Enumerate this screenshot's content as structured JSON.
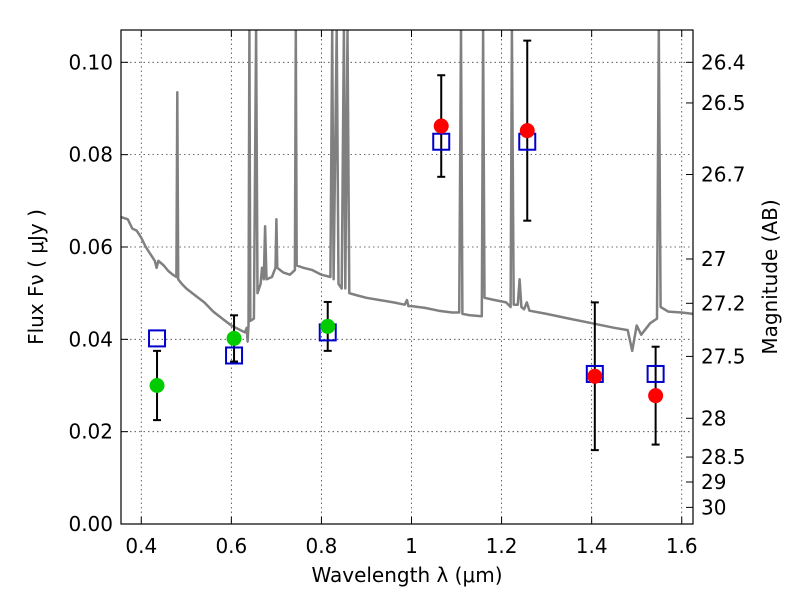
{
  "chart_data": {
    "type": "scatter",
    "xlabel": "Wavelength  λ (μm)",
    "ylabel": "Flux  Fν  ( μJy )",
    "ylabel_right": "Magnitude (AB)",
    "xlim": [
      0.355,
      1.625
    ],
    "ylim": [
      0.0,
      0.107
    ],
    "grid": true,
    "x_ticks": [
      0.4,
      0.6,
      0.8,
      1.0,
      1.2,
      1.4,
      1.6
    ],
    "x_tick_labels": [
      "0.4",
      "0.6",
      "0.8",
      "1",
      "1.2",
      "1.4",
      "1.6"
    ],
    "y_ticks": [
      0.0,
      0.02,
      0.04,
      0.06,
      0.08,
      0.1
    ],
    "y_tick_labels": [
      "0.00",
      "0.02",
      "0.04",
      "0.06",
      "0.08",
      "0.10"
    ],
    "right_ticks": [
      {
        "label": "26.4",
        "flux": 0.1
      },
      {
        "label": "26.5",
        "flux": 0.0912
      },
      {
        "label": "26.7",
        "flux": 0.0757
      },
      {
        "label": "27",
        "flux": 0.0574
      },
      {
        "label": "27.2",
        "flux": 0.0478
      },
      {
        "label": "27.5",
        "flux": 0.0363
      },
      {
        "label": "28",
        "flux": 0.0229
      },
      {
        "label": "28.5",
        "flux": 0.0145
      },
      {
        "label": "29",
        "flux": 0.0091
      },
      {
        "label": "30",
        "flux": 0.0036
      }
    ],
    "series": [
      {
        "marker": "open-square",
        "color": "#0000cc",
        "points": [
          {
            "x": 0.435,
            "y": 0.0402
          },
          {
            "x": 0.606,
            "y": 0.0365
          },
          {
            "x": 0.814,
            "y": 0.0415
          },
          {
            "x": 1.066,
            "y": 0.0828
          },
          {
            "x": 1.257,
            "y": 0.0828
          },
          {
            "x": 1.407,
            "y": 0.0325
          },
          {
            "x": 1.542,
            "y": 0.0325
          }
        ]
      },
      {
        "marker": "filled-circle",
        "color": "#00cc00",
        "points": [
          {
            "x": 0.435,
            "y": 0.03,
            "err": 0.0075
          },
          {
            "x": 0.606,
            "y": 0.0402,
            "err": 0.005
          },
          {
            "x": 0.814,
            "y": 0.0428,
            "err": 0.0053
          }
        ]
      },
      {
        "marker": "filled-circle",
        "color": "#ff0000",
        "points": [
          {
            "x": 1.066,
            "y": 0.0862,
            "err": 0.011
          },
          {
            "x": 1.257,
            "y": 0.0852,
            "err": 0.0195
          },
          {
            "x": 1.407,
            "y": 0.032,
            "err": 0.016
          },
          {
            "x": 1.542,
            "y": 0.0278,
            "err": 0.0106
          }
        ]
      },
      {
        "marker": "line",
        "color": "#808080",
        "points": [
          {
            "x": 0.355,
            "y": 0.0665
          },
          {
            "x": 0.37,
            "y": 0.066
          },
          {
            "x": 0.38,
            "y": 0.064
          },
          {
            "x": 0.39,
            "y": 0.0635
          },
          {
            "x": 0.4,
            "y": 0.062
          },
          {
            "x": 0.41,
            "y": 0.06
          },
          {
            "x": 0.42,
            "y": 0.0585
          },
          {
            "x": 0.43,
            "y": 0.057
          },
          {
            "x": 0.434,
            "y": 0.0555
          },
          {
            "x": 0.438,
            "y": 0.057
          },
          {
            "x": 0.45,
            "y": 0.056
          },
          {
            "x": 0.46,
            "y": 0.0548
          },
          {
            "x": 0.47,
            "y": 0.054
          },
          {
            "x": 0.478,
            "y": 0.0535
          },
          {
            "x": 0.48,
            "y": 0.0935
          },
          {
            "x": 0.482,
            "y": 0.053
          },
          {
            "x": 0.49,
            "y": 0.052
          },
          {
            "x": 0.5,
            "y": 0.051
          },
          {
            "x": 0.52,
            "y": 0.0495
          },
          {
            "x": 0.54,
            "y": 0.048
          },
          {
            "x": 0.56,
            "y": 0.046
          },
          {
            "x": 0.58,
            "y": 0.0445
          },
          {
            "x": 0.6,
            "y": 0.043
          },
          {
            "x": 0.62,
            "y": 0.042
          },
          {
            "x": 0.63,
            "y": 0.0415
          },
          {
            "x": 0.634,
            "y": 0.0425
          },
          {
            "x": 0.636,
            "y": 0.0395
          },
          {
            "x": 0.638,
            "y": 0.043
          },
          {
            "x": 0.64,
            "y": 0.107
          },
          {
            "x": 0.642,
            "y": 0.044
          },
          {
            "x": 0.65,
            "y": 0.0445
          },
          {
            "x": 0.655,
            "y": 0.107
          },
          {
            "x": 0.658,
            "y": 0.05
          },
          {
            "x": 0.665,
            "y": 0.052
          },
          {
            "x": 0.668,
            "y": 0.0555
          },
          {
            "x": 0.672,
            "y": 0.053
          },
          {
            "x": 0.675,
            "y": 0.0645
          },
          {
            "x": 0.678,
            "y": 0.053
          },
          {
            "x": 0.69,
            "y": 0.0535
          },
          {
            "x": 0.698,
            "y": 0.0555
          },
          {
            "x": 0.7,
            "y": 0.066
          },
          {
            "x": 0.702,
            "y": 0.0555
          },
          {
            "x": 0.715,
            "y": 0.0545
          },
          {
            "x": 0.73,
            "y": 0.054
          },
          {
            "x": 0.741,
            "y": 0.055
          },
          {
            "x": 0.743,
            "y": 0.107
          },
          {
            "x": 0.745,
            "y": 0.056
          },
          {
            "x": 0.76,
            "y": 0.0555
          },
          {
            "x": 0.78,
            "y": 0.055
          },
          {
            "x": 0.8,
            "y": 0.054
          },
          {
            "x": 0.82,
            "y": 0.0535
          },
          {
            "x": 0.824,
            "y": 0.107
          },
          {
            "x": 0.827,
            "y": 0.053
          },
          {
            "x": 0.834,
            "y": 0.107
          },
          {
            "x": 0.838,
            "y": 0.052
          },
          {
            "x": 0.845,
            "y": 0.051
          },
          {
            "x": 0.85,
            "y": 0.107
          },
          {
            "x": 0.853,
            "y": 0.051
          },
          {
            "x": 0.858,
            "y": 0.107
          },
          {
            "x": 0.862,
            "y": 0.05
          },
          {
            "x": 0.88,
            "y": 0.0495
          },
          {
            "x": 0.9,
            "y": 0.049
          },
          {
            "x": 0.93,
            "y": 0.0485
          },
          {
            "x": 0.96,
            "y": 0.048
          },
          {
            "x": 0.985,
            "y": 0.0475
          },
          {
            "x": 0.99,
            "y": 0.0485
          },
          {
            "x": 0.993,
            "y": 0.0472
          },
          {
            "x": 1.0,
            "y": 0.0472
          },
          {
            "x": 1.03,
            "y": 0.0468
          },
          {
            "x": 1.06,
            "y": 0.0462
          },
          {
            "x": 1.09,
            "y": 0.0458
          },
          {
            "x": 1.106,
            "y": 0.0458
          },
          {
            "x": 1.11,
            "y": 0.107
          },
          {
            "x": 1.113,
            "y": 0.0455
          },
          {
            "x": 1.13,
            "y": 0.0452
          },
          {
            "x": 1.156,
            "y": 0.045
          },
          {
            "x": 1.159,
            "y": 0.107
          },
          {
            "x": 1.162,
            "y": 0.049
          },
          {
            "x": 1.18,
            "y": 0.0486
          },
          {
            "x": 1.21,
            "y": 0.048
          },
          {
            "x": 1.22,
            "y": 0.047
          },
          {
            "x": 1.223,
            "y": 0.107
          },
          {
            "x": 1.227,
            "y": 0.0475
          },
          {
            "x": 1.236,
            "y": 0.0475
          },
          {
            "x": 1.24,
            "y": 0.053
          },
          {
            "x": 1.244,
            "y": 0.047
          },
          {
            "x": 1.25,
            "y": 0.0465
          },
          {
            "x": 1.256,
            "y": 0.048
          },
          {
            "x": 1.262,
            "y": 0.0462
          },
          {
            "x": 1.3,
            "y": 0.0455
          },
          {
            "x": 1.35,
            "y": 0.0445
          },
          {
            "x": 1.4,
            "y": 0.0435
          },
          {
            "x": 1.45,
            "y": 0.0425
          },
          {
            "x": 1.48,
            "y": 0.042
          },
          {
            "x": 1.49,
            "y": 0.0375
          },
          {
            "x": 1.5,
            "y": 0.043
          },
          {
            "x": 1.51,
            "y": 0.041
          },
          {
            "x": 1.53,
            "y": 0.0435
          },
          {
            "x": 1.545,
            "y": 0.0445
          },
          {
            "x": 1.549,
            "y": 0.107
          },
          {
            "x": 1.553,
            "y": 0.047
          },
          {
            "x": 1.57,
            "y": 0.046
          },
          {
            "x": 1.6,
            "y": 0.0458
          },
          {
            "x": 1.625,
            "y": 0.0455
          }
        ]
      }
    ]
  }
}
